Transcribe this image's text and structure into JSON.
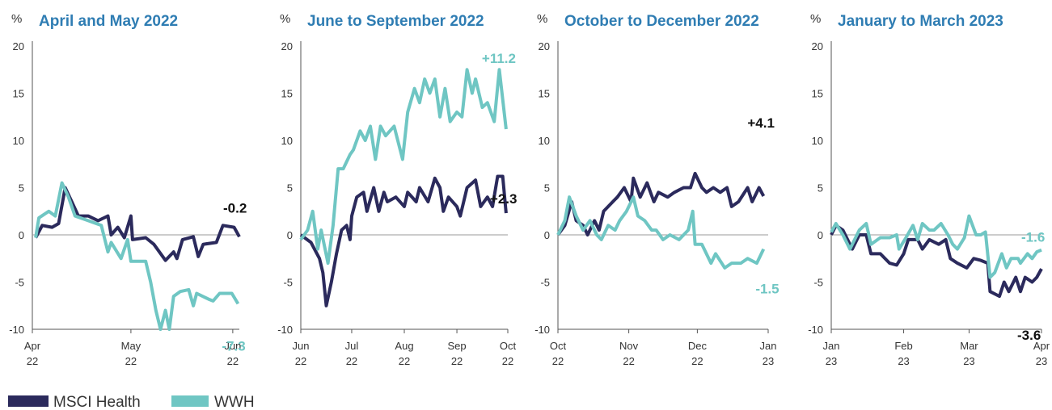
{
  "chart_data": [
    {
      "type": "line",
      "title": "April and May 2022",
      "ylabel": "%",
      "xlim": [
        0,
        63
      ],
      "xticks": [
        {
          "value": 0,
          "label": "Apr 22"
        },
        {
          "value": 30,
          "label": "May 22"
        },
        {
          "value": 61,
          "label": "Jun 22"
        }
      ],
      "ylim": [
        -10,
        20
      ],
      "yticks": [
        20,
        15,
        10,
        5,
        0,
        -5,
        -10
      ],
      "series": [
        {
          "name": "MSCI Health",
          "color": "#2b2a5c",
          "end_label": "-0.2",
          "x": [
            1,
            3,
            6,
            8,
            10,
            12,
            14,
            17,
            20,
            23,
            24,
            26,
            28,
            30,
            30.5,
            34.5,
            37,
            40.5,
            43,
            44,
            45.7,
            49,
            50.5,
            52,
            56,
            58,
            61.4,
            63
          ],
          "values": [
            -0.3,
            1.0,
            0.8,
            1.2,
            5.0,
            3.5,
            2.0,
            2.0,
            1.5,
            2.0,
            0.0,
            0.8,
            -0.3,
            2.0,
            -0.5,
            -0.3,
            -1.0,
            -2.7,
            -1.8,
            -2.5,
            -0.5,
            -0.2,
            -2.3,
            -1.0,
            -0.8,
            1.0,
            0.8,
            -0.2
          ]
        },
        {
          "name": "WWH",
          "color": "#6fc6c3",
          "end_label": "-7.3",
          "x": [
            1,
            2,
            5,
            7,
            9,
            11,
            13,
            17,
            21,
            23,
            24,
            27,
            29,
            30,
            34.5,
            36,
            37.6,
            39,
            40.5,
            41.7,
            43,
            45,
            47.6,
            49,
            50,
            53.6,
            55,
            57,
            60.7,
            62.6
          ],
          "values": [
            -0.3,
            1.8,
            2.5,
            2.0,
            5.5,
            4.0,
            2.0,
            1.5,
            1.0,
            -1.8,
            -0.8,
            -2.5,
            -0.5,
            -2.8,
            -2.8,
            -5.0,
            -8.0,
            -10.0,
            -8.0,
            -10.0,
            -6.5,
            -6.0,
            -5.8,
            -7.5,
            -6.2,
            -6.8,
            -7.0,
            -6.2,
            -6.2,
            -7.3
          ]
        }
      ]
    },
    {
      "type": "line",
      "title": "June to September 2022",
      "ylabel": "%",
      "xlim": [
        0,
        122
      ],
      "xticks": [
        {
          "value": 0,
          "label": "Jun 22"
        },
        {
          "value": 30,
          "label": "Jul 22"
        },
        {
          "value": 61,
          "label": "Aug 22"
        },
        {
          "value": 92,
          "label": "Sep 22"
        },
        {
          "value": 122,
          "label": "Oct 22"
        }
      ],
      "ylim": [
        -10,
        20
      ],
      "yticks": [
        20,
        15,
        10,
        5,
        0,
        -5,
        -10
      ],
      "series": [
        {
          "name": "MSCI Health",
          "color": "#2b2a5c",
          "end_label": "+2.3",
          "x": [
            0,
            6,
            11,
            13,
            15,
            18,
            21,
            24,
            27,
            29,
            30,
            33,
            37,
            39,
            43,
            46,
            49,
            51,
            56,
            61,
            63,
            68,
            70,
            75,
            79,
            82,
            84,
            87,
            92,
            94,
            98,
            103,
            106,
            110,
            113,
            116,
            119,
            121
          ],
          "values": [
            0,
            -0.8,
            -2.5,
            -4,
            -7.5,
            -5,
            -2,
            0.5,
            1,
            -0.5,
            2,
            4,
            4.5,
            2.5,
            5,
            2.5,
            4.5,
            3.5,
            4,
            3,
            4.5,
            3.5,
            5,
            3.5,
            6,
            5,
            2.5,
            4,
            3,
            2,
            5,
            5.8,
            3,
            4,
            3,
            6.2,
            6.2,
            2.3
          ]
        },
        {
          "name": "WWH",
          "color": "#6fc6c3",
          "end_label": "+11.2",
          "x": [
            0,
            4,
            7,
            10,
            12,
            16,
            19,
            22,
            25,
            29,
            31,
            35,
            38,
            41,
            44,
            47,
            50,
            55,
            60,
            63,
            67,
            70,
            73,
            76,
            79,
            82,
            85,
            88,
            92,
            95,
            98,
            101,
            103,
            107,
            110,
            114,
            117,
            121
          ],
          "values": [
            -0.5,
            0.5,
            2.5,
            -1.5,
            0.5,
            -3,
            1,
            7,
            7,
            8.5,
            9,
            11,
            10,
            11.5,
            8,
            11.5,
            10.5,
            11.5,
            8,
            13,
            15.5,
            14,
            16.5,
            15,
            16.5,
            12.5,
            15.5,
            12,
            13,
            12.5,
            17.5,
            15,
            16.5,
            13.5,
            14,
            12,
            17.5,
            11.2
          ]
        }
      ]
    },
    {
      "type": "line",
      "title": "October to December 2022",
      "ylabel": "%",
      "xlim": [
        0,
        92
      ],
      "xticks": [
        {
          "value": 0,
          "label": "Oct 22"
        },
        {
          "value": 31,
          "label": "Nov 22"
        },
        {
          "value": 61,
          "label": "Dec 22"
        },
        {
          "value": 92,
          "label": "Jan 23"
        }
      ],
      "ylim": [
        -10,
        20
      ],
      "yticks": [
        20,
        15,
        10,
        5,
        0,
        -5,
        -10
      ],
      "series": [
        {
          "name": "MSCI Health",
          "color": "#2b2a5c",
          "end_label": "+4.1",
          "x": [
            0,
            3,
            6,
            8,
            11,
            13,
            16,
            18,
            20,
            24,
            26,
            29,
            32,
            33,
            36,
            39,
            42,
            44,
            48,
            51,
            55,
            58,
            60,
            63,
            65,
            68,
            71,
            74,
            76,
            79,
            83,
            85,
            88,
            90
          ],
          "values": [
            0,
            1,
            3.5,
            1.5,
            1,
            0,
            1.5,
            0.5,
            2.5,
            3.5,
            4,
            5,
            3.5,
            6,
            4,
            5.5,
            3.5,
            4.5,
            4,
            4.5,
            5,
            5,
            6.5,
            5,
            4.5,
            5,
            4.5,
            5,
            3,
            3.5,
            5,
            3.5,
            5,
            4.1
          ]
        },
        {
          "name": "WWH",
          "color": "#6fc6c3",
          "end_label": "-1.5",
          "x": [
            0,
            3,
            5,
            8,
            11,
            14,
            17,
            19,
            22,
            25,
            27,
            30,
            33,
            35,
            38,
            41,
            43,
            46,
            49,
            53,
            57,
            59,
            60,
            63,
            67,
            69,
            73,
            76,
            80,
            83,
            87,
            90
          ],
          "values": [
            0,
            1.5,
            4,
            2,
            0.5,
            1.5,
            0,
            -0.5,
            1,
            0.5,
            1.5,
            2.5,
            4,
            2,
            1.5,
            0.5,
            0.5,
            -0.5,
            0,
            -0.5,
            0.5,
            2.5,
            -1,
            -1,
            -3,
            -2,
            -3.5,
            -3,
            -3,
            -2.5,
            -3,
            -1.5
          ]
        }
      ]
    },
    {
      "type": "line",
      "title": "January to March 2023",
      "ylabel": "%",
      "xlim": [
        0,
        90
      ],
      "xticks": [
        {
          "value": 0,
          "label": "Jan 23"
        },
        {
          "value": 31,
          "label": "Feb 23"
        },
        {
          "value": 59,
          "label": "Mar 23"
        },
        {
          "value": 90,
          "label": "Apr 23"
        }
      ],
      "ylim": [
        -10,
        20
      ],
      "yticks": [
        20,
        15,
        10,
        5,
        0,
        -5,
        -10
      ],
      "series": [
        {
          "name": "MSCI Health",
          "color": "#2b2a5c",
          "end_label": "-3.6",
          "x": [
            0,
            2,
            5,
            8,
            9,
            12,
            15,
            17,
            21,
            25,
            28,
            31,
            33,
            37,
            39,
            42,
            46,
            49,
            51,
            54,
            58,
            61,
            64,
            67,
            68,
            72,
            74,
            76,
            79,
            81,
            83,
            86,
            88,
            90
          ],
          "values": [
            0,
            1,
            0.5,
            -1,
            -1.5,
            0,
            0,
            -2,
            -2,
            -3,
            -3.2,
            -2,
            -0.5,
            -0.5,
            -1.5,
            -0.5,
            -1,
            -0.5,
            -2.5,
            -3,
            -3.5,
            -2.5,
            -2.7,
            -3,
            -6,
            -6.5,
            -5,
            -6,
            -4.5,
            -6,
            -4.5,
            -5,
            -4.5,
            -3.6
          ]
        },
        {
          "name": "WWH",
          "color": "#6fc6c3",
          "end_label": "-1.6",
          "x": [
            0,
            2,
            5,
            8,
            9,
            12,
            15,
            17,
            21,
            25,
            28,
            29,
            32,
            35,
            37,
            39,
            42,
            44,
            47,
            50,
            52,
            54,
            57,
            59,
            62,
            64,
            66,
            68,
            70,
            73,
            75,
            77,
            80,
            81,
            84,
            86,
            88,
            90
          ],
          "values": [
            0.3,
            1.2,
            0,
            -1.5,
            -1,
            0.5,
            1.2,
            -1,
            -0.3,
            -0.3,
            0,
            -1.5,
            -0.3,
            1,
            -0.5,
            1.2,
            0.5,
            0.5,
            1.2,
            0,
            -1,
            -1.5,
            -0.3,
            2,
            0,
            0,
            0.3,
            -4.5,
            -4,
            -2,
            -3.5,
            -2.5,
            -2.5,
            -3,
            -2,
            -2.5,
            -1.8,
            -1.6
          ]
        }
      ]
    }
  ]
}
